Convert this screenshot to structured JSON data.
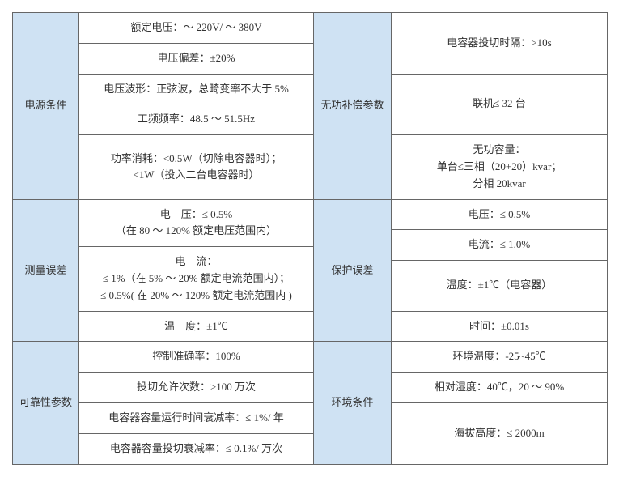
{
  "table": {
    "border_color": "#666666",
    "header_bg": "#cfe2f3",
    "font_size": 13,
    "sections": {
      "s1": {
        "left_header": "电源条件",
        "right_header": "无功补偿参数",
        "left": [
          "额定电压：～ 220V/ ～ 380V",
          "电压偏差：±20%",
          "电压波形：正弦波，总畸变率不大于 5%",
          "工频频率：48.5 ～ 51.5Hz",
          "功率消耗：<0.5W（切除电容器时）；\n<1W（投入二台电容器时）"
        ],
        "right": [
          "电容器投切时隔：>10s",
          "联机≤ 32 台",
          "无功容量：\n单台≤三相（20+20）kvar；\n分相 20kvar"
        ]
      },
      "s2": {
        "left_header": "测量误差",
        "right_header": "保护误差",
        "left": [
          "电　压：≤ 0.5%\n（在 80 ～ 120% 额定电压范围内）",
          "电　流：\n≤ 1%（在 5% ～ 20% 额定电流范围内）；\n≤ 0.5%( 在 20% ～ 120% 额定电流范围内 )",
          "温　度：±1℃"
        ],
        "right": [
          "电压：≤ 0.5%",
          "电流：≤ 1.0%",
          "温度：±1℃（电容器）",
          "时间：±0.01s"
        ]
      },
      "s3": {
        "left_header": "可靠性参数",
        "right_header": "环境条件",
        "left": [
          "控制准确率：100%",
          "投切允许次数：>100 万次",
          "电容器容量运行时间衰减率：≤ 1%/ 年",
          "电容器容量投切衰减率：≤ 0.1%/ 万次"
        ],
        "right": [
          "环境温度：-25~45℃",
          "相对湿度：40℃，20 ～ 90%",
          "海拔高度：≤ 2000m"
        ]
      }
    }
  }
}
